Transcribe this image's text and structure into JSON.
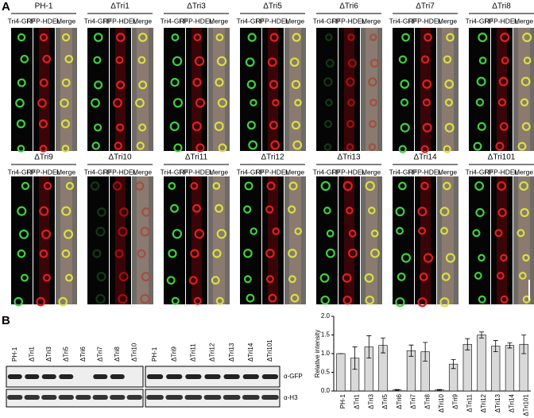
{
  "panel_a": {
    "label": "A",
    "column_labels": [
      "Tri4-GFP",
      "RFP-HDEL",
      "Merge"
    ],
    "strains": [
      "PH-1",
      "ΔTri1",
      "ΔTri3",
      "ΔTri5",
      "ΔTri6",
      "ΔTri7",
      "ΔTri8",
      "ΔTri9",
      "ΔTri10",
      "ΔTri11",
      "ΔTri12",
      "ΔTri13",
      "ΔTri14",
      "ΔTri101"
    ]
  },
  "panel_b": {
    "label": "B",
    "blot_left_lanes": [
      "PH-1",
      "ΔTri1",
      "ΔTri3",
      "ΔTri5",
      "ΔTri6",
      "ΔTri7",
      "ΔTri8",
      "ΔTri10"
    ],
    "blot_right_lanes": [
      "PH-1",
      "ΔTri9",
      "ΔTri11",
      "ΔTri12",
      "ΔTri13",
      "ΔTri14",
      "ΔTri101"
    ],
    "antibodies": [
      "α-GFP",
      "α-H3"
    ]
  },
  "chart_data": {
    "type": "bar",
    "y_label": "Relative intensity",
    "categories": [
      "PH-1",
      "ΔTri1",
      "ΔTri3",
      "ΔTri5",
      "ΔTri6",
      "ΔTri7",
      "ΔTri8",
      "ΔTri10",
      "ΔTri9",
      "ΔTri11",
      "ΔTri12",
      "ΔTri13",
      "ΔTri14",
      "ΔTri101"
    ],
    "values": [
      1.0,
      0.88,
      1.18,
      1.22,
      0.03,
      1.08,
      1.05,
      0.03,
      0.72,
      1.25,
      1.5,
      1.2,
      1.22,
      1.25
    ],
    "errors": [
      0.0,
      0.3,
      0.3,
      0.2,
      0.01,
      0.15,
      0.25,
      0.01,
      0.12,
      0.15,
      0.08,
      0.15,
      0.07,
      0.25
    ],
    "color": "#d9d9d9",
    "ylim": [
      0,
      2.0
    ],
    "yticks": [
      {
        "value": 0,
        "label": "0.0"
      },
      {
        "value": 0.5,
        "label": "0.5"
      },
      {
        "value": 1.0,
        "label": "1.0"
      },
      {
        "value": 1.5,
        "label": "1.5"
      },
      {
        "value": 2.0,
        "label": "2.0"
      }
    ]
  }
}
